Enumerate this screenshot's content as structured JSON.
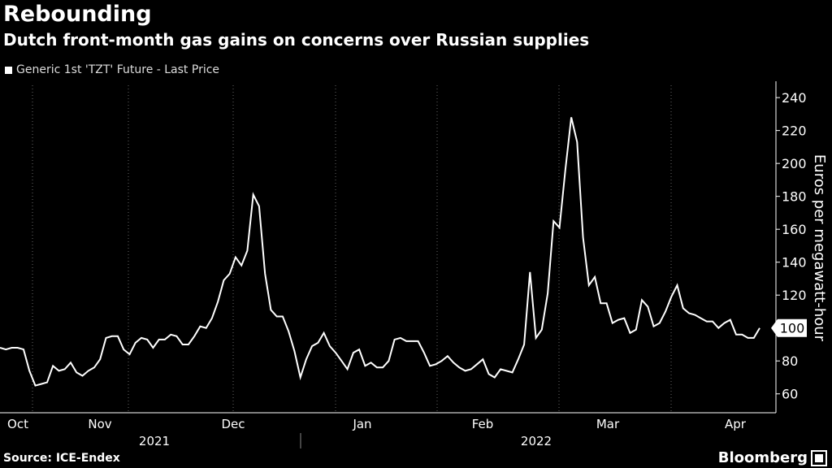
{
  "header": {
    "title": "Rebounding",
    "subtitle": "Dutch front-month gas gains on concerns over Russian supplies",
    "legend_label": "Generic 1st 'TZT' Future - Last Price"
  },
  "footer": {
    "source": "Source: ICE-Endex",
    "brand": "Bloomberg"
  },
  "colors": {
    "background": "#000000",
    "line": "#ffffff",
    "grid": "#555555"
  },
  "chart_data": {
    "type": "line",
    "title": "Rebounding",
    "subtitle": "Dutch front-month gas gains on concerns over Russian supplies",
    "ylabel": "Euros per megawatt-hour",
    "ylim": [
      50,
      245
    ],
    "yticks": [
      60,
      80,
      100,
      120,
      140,
      160,
      180,
      200,
      220,
      240
    ],
    "y_axis_position": "right",
    "grid": true,
    "grid_style": "dotted vertical",
    "legend_placement": "top-left",
    "last_value_label": "100",
    "month_labels": [
      "Oct",
      "Nov",
      "Dec",
      "Jan",
      "Feb",
      "Mar",
      "Apr"
    ],
    "year_labels": [
      "2021",
      "2022"
    ],
    "series": [
      {
        "name": "Generic 1st 'TZT' Future - Last Price",
        "values": [
          88,
          87,
          88,
          88,
          87,
          74,
          65,
          66,
          67,
          77,
          74,
          75,
          79,
          73,
          71,
          74,
          76,
          81,
          94,
          95,
          95,
          87,
          84,
          91,
          94,
          93,
          88,
          93,
          93,
          96,
          95,
          90,
          90,
          95,
          101,
          100,
          106,
          116,
          129,
          133,
          143,
          138,
          147,
          181,
          174,
          133,
          111,
          107,
          107,
          98,
          86,
          70,
          81,
          89,
          91,
          97,
          89,
          85,
          80,
          75,
          85,
          87,
          77,
          79,
          76,
          76,
          80,
          93,
          94,
          92,
          92,
          92,
          85,
          77,
          78,
          80,
          83,
          79,
          76,
          74,
          75,
          78,
          81,
          72,
          70,
          75,
          74,
          73,
          81,
          90,
          134,
          94,
          99,
          121,
          165,
          161,
          196,
          228,
          213,
          155,
          126,
          131,
          115,
          115,
          103,
          105,
          106,
          97,
          99,
          117,
          113,
          101,
          103,
          110,
          119,
          126,
          112,
          109,
          108,
          106,
          104,
          104,
          100,
          103,
          105,
          96,
          96,
          94,
          94,
          100
        ]
      }
    ]
  }
}
